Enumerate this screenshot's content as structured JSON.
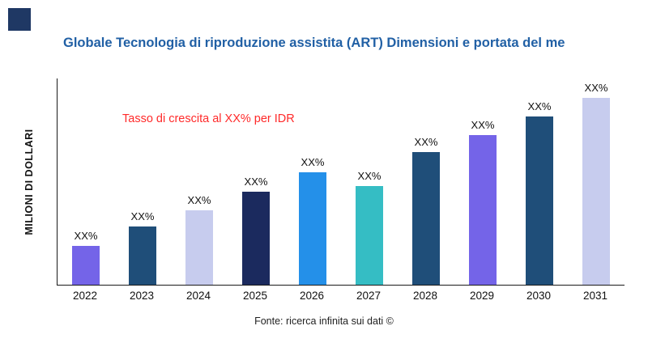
{
  "logo": {
    "color": "#1F3864"
  },
  "title": "Globale Tecnologia di riproduzione assistita (ART) Dimensioni e portata del me",
  "title_color": "#2160A5",
  "annotation": {
    "text": "Tasso di crescita al XX% per IDR",
    "color": "#FF2A2A"
  },
  "y_axis_label": "MILIONI DI DOLLARI",
  "footer": "Fonte: ricerca infinita sui dati ©",
  "chart_data": {
    "type": "bar",
    "title": "Globale Tecnologia di riproduzione assistita (ART) Dimensioni e portata del me",
    "categories": [
      "2022",
      "2023",
      "2024",
      "2025",
      "2026",
      "2027",
      "2028",
      "2029",
      "2030",
      "2031"
    ],
    "values": [
      21,
      31,
      40,
      50,
      60,
      53,
      71,
      80,
      90,
      100
    ],
    "value_labels": [
      "XX%",
      "XX%",
      "XX%",
      "XX%",
      "XX%",
      "XX%",
      "XX%",
      "XX%",
      "XX%",
      "XX%"
    ],
    "bar_colors": [
      "#7464E8",
      "#1F4E79",
      "#C7CCEE",
      "#1B2A5E",
      "#2490E9",
      "#35BDC4",
      "#1F4E79",
      "#7464E8",
      "#1F4E79",
      "#C7CCEE"
    ],
    "xlabel": "",
    "ylabel": "MILIONI DI DOLLARI",
    "ylim": [
      0,
      110
    ],
    "grid": false,
    "legend": "none",
    "units": "relative height percent (actual values masked as XX%)"
  }
}
